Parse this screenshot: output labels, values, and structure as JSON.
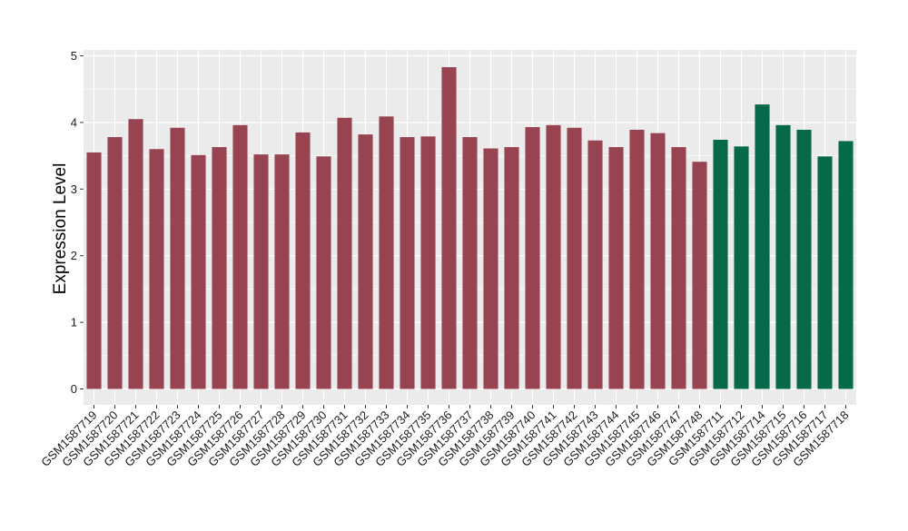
{
  "chart_data": {
    "type": "bar",
    "title": "",
    "xlabel": "",
    "ylabel": "Expression Level",
    "ylim": [
      0,
      5
    ],
    "yticks": [
      0,
      1,
      2,
      3,
      4,
      5
    ],
    "grid": true,
    "legend": "none",
    "categories": [
      "GSM1587719",
      "GSM1587720",
      "GSM1587721",
      "GSM1587722",
      "GSM1587723",
      "GSM1587724",
      "GSM1587725",
      "GSM1587726",
      "GSM1587727",
      "GSM1587728",
      "GSM1587729",
      "GSM1587730",
      "GSM1587731",
      "GSM1587732",
      "GSM1587733",
      "GSM1587734",
      "GSM1587735",
      "GSM1587736",
      "GSM1587737",
      "GSM1587738",
      "GSM1587739",
      "GSM1587740",
      "GSM1587741",
      "GSM1587742",
      "GSM1587743",
      "GSM1587744",
      "GSM1587745",
      "GSM1587746",
      "GSM1587747",
      "GSM1587748",
      "GSM1587711",
      "GSM1587712",
      "GSM1587714",
      "GSM1587715",
      "GSM1587716",
      "GSM1587717",
      "GSM1587718"
    ],
    "values": [
      3.55,
      3.78,
      4.05,
      3.6,
      3.92,
      3.51,
      3.63,
      3.96,
      3.52,
      3.52,
      3.85,
      3.49,
      4.07,
      3.82,
      4.09,
      3.78,
      3.79,
      4.83,
      3.78,
      3.61,
      3.63,
      3.93,
      3.96,
      3.92,
      3.73,
      3.63,
      3.89,
      3.84,
      3.63,
      3.41,
      3.74,
      3.64,
      4.27,
      3.96,
      3.89,
      3.49,
      3.72
    ],
    "bar_colors": [
      "#984450",
      "#984450",
      "#984450",
      "#984450",
      "#984450",
      "#984450",
      "#984450",
      "#984450",
      "#984450",
      "#984450",
      "#984450",
      "#984450",
      "#984450",
      "#984450",
      "#984450",
      "#984450",
      "#984450",
      "#984450",
      "#984450",
      "#984450",
      "#984450",
      "#984450",
      "#984450",
      "#984450",
      "#984450",
      "#984450",
      "#984450",
      "#984450",
      "#984450",
      "#984450",
      "#05694a",
      "#05694a",
      "#05694a",
      "#05694a",
      "#05694a",
      "#05694a",
      "#05694a"
    ],
    "panel_background": "#ebebeb",
    "gridline_color": "#ffffff"
  }
}
